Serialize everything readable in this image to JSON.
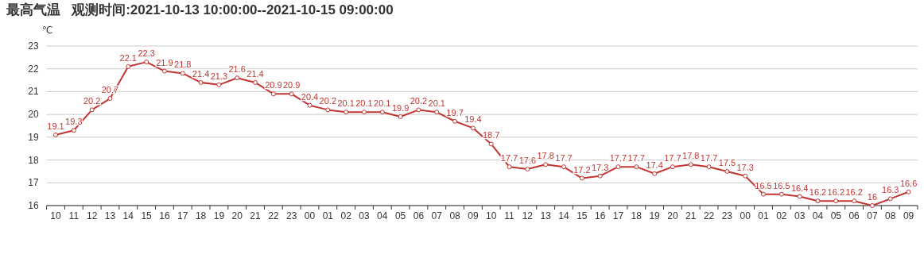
{
  "chart_data": {
    "type": "line",
    "title": "最高气温   观测时间:2021-10-13 10:00:00--2021-10-15 09:00:00",
    "ylabel": "℃",
    "categories": [
      "10",
      "11",
      "12",
      "13",
      "14",
      "15",
      "16",
      "17",
      "18",
      "19",
      "20",
      "21",
      "22",
      "23",
      "00",
      "01",
      "02",
      "03",
      "04",
      "05",
      "06",
      "07",
      "08",
      "09",
      "10",
      "11",
      "12",
      "13",
      "14",
      "15",
      "16",
      "17",
      "18",
      "19",
      "20",
      "21",
      "22",
      "23",
      "00",
      "01",
      "02",
      "03",
      "04",
      "05",
      "06",
      "07",
      "08",
      "09"
    ],
    "series": [
      {
        "color": "#c23531",
        "values": [
          19.1,
          19.3,
          20.2,
          20.7,
          22.1,
          22.3,
          21.9,
          21.8,
          21.4,
          21.3,
          21.6,
          21.4,
          20.9,
          20.9,
          20.4,
          20.2,
          20.1,
          20.1,
          20.1,
          19.9,
          20.2,
          20.1,
          19.7,
          19.4,
          18.7,
          17.7,
          17.6,
          17.8,
          17.7,
          17.2,
          17.3,
          17.7,
          17.7,
          17.4,
          17.7,
          17.8,
          17.7,
          17.5,
          17.3,
          16.5,
          16.5,
          16.4,
          16.2,
          16.2,
          16.2,
          16,
          16.3,
          16.6
        ]
      }
    ],
    "ylim": [
      16,
      23
    ],
    "yticks": [
      16,
      17,
      18,
      19,
      20,
      21,
      22,
      23
    ],
    "grid": "y",
    "marker": "circle",
    "line_style": "solid",
    "data_labels": true
  }
}
